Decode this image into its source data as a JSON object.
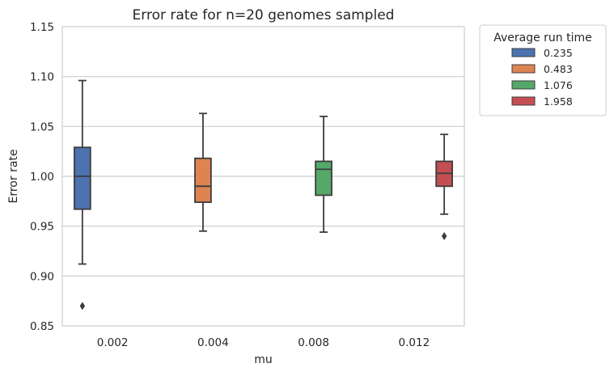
{
  "chart_data": {
    "type": "box",
    "title": "Error rate for n=20 genomes sampled",
    "xlabel": "mu",
    "ylabel": "Error rate",
    "categories": [
      "0.002",
      "0.004",
      "0.008",
      "0.012"
    ],
    "ylim": [
      0.85,
      1.15
    ],
    "yticks": [
      "0.85",
      "0.90",
      "0.95",
      "1.00",
      "1.05",
      "1.10",
      "1.15"
    ],
    "grid": "horizontal",
    "legend": {
      "title": "Average run time",
      "placement": "outside-top-right"
    },
    "series": [
      {
        "name": "0.235",
        "category": "0.002",
        "color": "#4c72b0",
        "whisker_low": 0.912,
        "q1": 0.967,
        "median": 1.0,
        "q3": 1.029,
        "whisker_high": 1.096,
        "outliers": [
          0.87
        ]
      },
      {
        "name": "0.483",
        "category": "0.004",
        "color": "#dd8452",
        "whisker_low": 0.945,
        "q1": 0.974,
        "median": 0.99,
        "q3": 1.018,
        "whisker_high": 1.063,
        "outliers": []
      },
      {
        "name": "1.076",
        "category": "0.008",
        "color": "#55a868",
        "whisker_low": 0.944,
        "q1": 0.981,
        "median": 1.007,
        "q3": 1.015,
        "whisker_high": 1.06,
        "outliers": []
      },
      {
        "name": "1.958",
        "category": "0.012",
        "color": "#c44e52",
        "whisker_low": 0.962,
        "q1": 0.99,
        "median": 1.003,
        "q3": 1.015,
        "whisker_high": 1.042,
        "outliers": [
          0.94
        ]
      }
    ]
  }
}
